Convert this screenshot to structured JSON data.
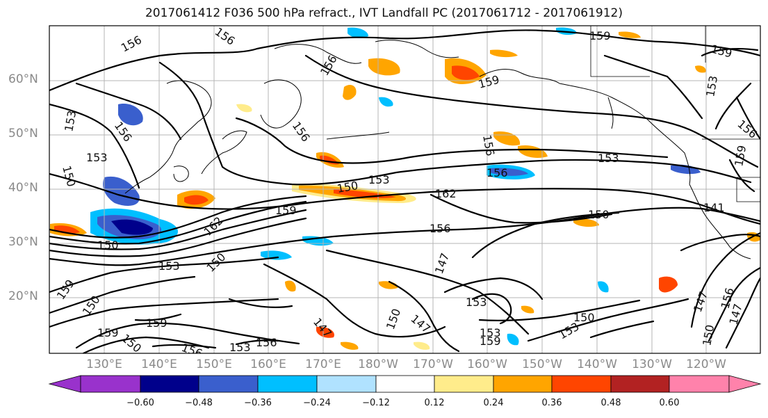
{
  "title": "2017061412 F036 500 hPa refract., IVT Landfall PC (2017061712 - 2017061912)",
  "lat_labels": [
    "60°N",
    "50°N",
    "40°N",
    "30°N",
    "20°N"
  ],
  "lon_labels": [
    "130°E",
    "140°E",
    "150°E",
    "160°E",
    "170°E",
    "180°W",
    "170°W",
    "160°W",
    "150°W",
    "140°W",
    "130°W",
    "120°W"
  ],
  "colorbar": {
    "ticks": [
      "−0.60",
      "−0.48",
      "−0.36",
      "−0.24",
      "−0.12",
      "0.12",
      "0.24",
      "0.36",
      "0.48",
      "0.60"
    ],
    "colors": [
      "#9932cc",
      "#00008b",
      "#3a5fcd",
      "#00bfff",
      "#b0e2ff",
      "#ffffff",
      "#ffec8b",
      "#ffa500",
      "#ff4500",
      "#b22222",
      "#ff82ab"
    ]
  },
  "contour_labels": [
    "156",
    "156",
    "159",
    "159",
    "153",
    "156",
    "153",
    "156",
    "156",
    "159",
    "159",
    "156",
    "153",
    "150",
    "153",
    "156",
    "153",
    "162",
    "150",
    "159",
    "150",
    "162",
    "156",
    "150",
    "153",
    "150",
    "147",
    "159",
    "153",
    "147",
    "147",
    "150",
    "156",
    "159",
    "153",
    "150",
    "147",
    "150",
    "150",
    "153",
    "156",
    "159",
    "153",
    "156",
    "141",
    "147",
    "150",
    "159",
    "156"
  ],
  "colors": {
    "contour": "#000000",
    "coast": "#000000",
    "grid": "#b4b4b4"
  }
}
